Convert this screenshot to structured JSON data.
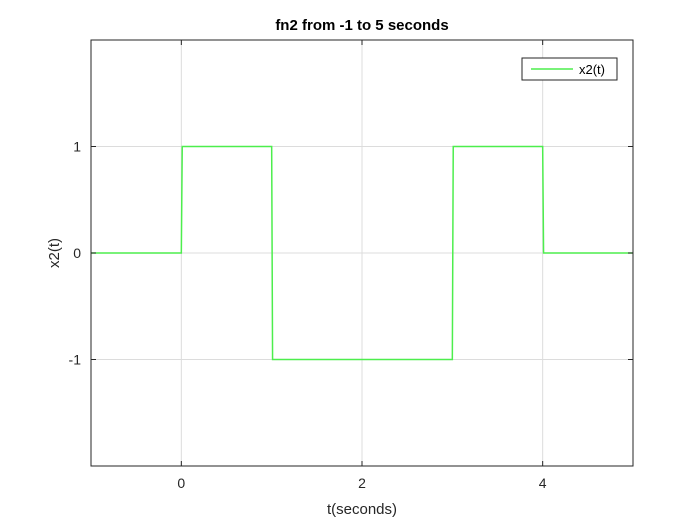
{
  "chart_data": {
    "type": "line",
    "title": "fn2 from -1 to 5 seconds",
    "xlabel": "t(seconds)",
    "ylabel": "x2(t)",
    "xlim": [
      -1,
      5
    ],
    "ylim": [
      -2,
      2
    ],
    "xticks": [
      0,
      2,
      4
    ],
    "yticks": [
      -1,
      0,
      1
    ],
    "xtick_labels": [
      "0",
      "2",
      "4"
    ],
    "ytick_labels": [
      "-1",
      "0",
      "1"
    ],
    "grid": true,
    "legend_position": "top-right",
    "series": [
      {
        "name": "x2(t)",
        "color": "#4dee4d",
        "x": [
          -1,
          0,
          0.01,
          1,
          1.01,
          3,
          3.01,
          4,
          4.01,
          5
        ],
        "y": [
          0,
          0,
          1,
          1,
          -1,
          -1,
          1,
          1,
          0,
          0
        ]
      }
    ]
  }
}
